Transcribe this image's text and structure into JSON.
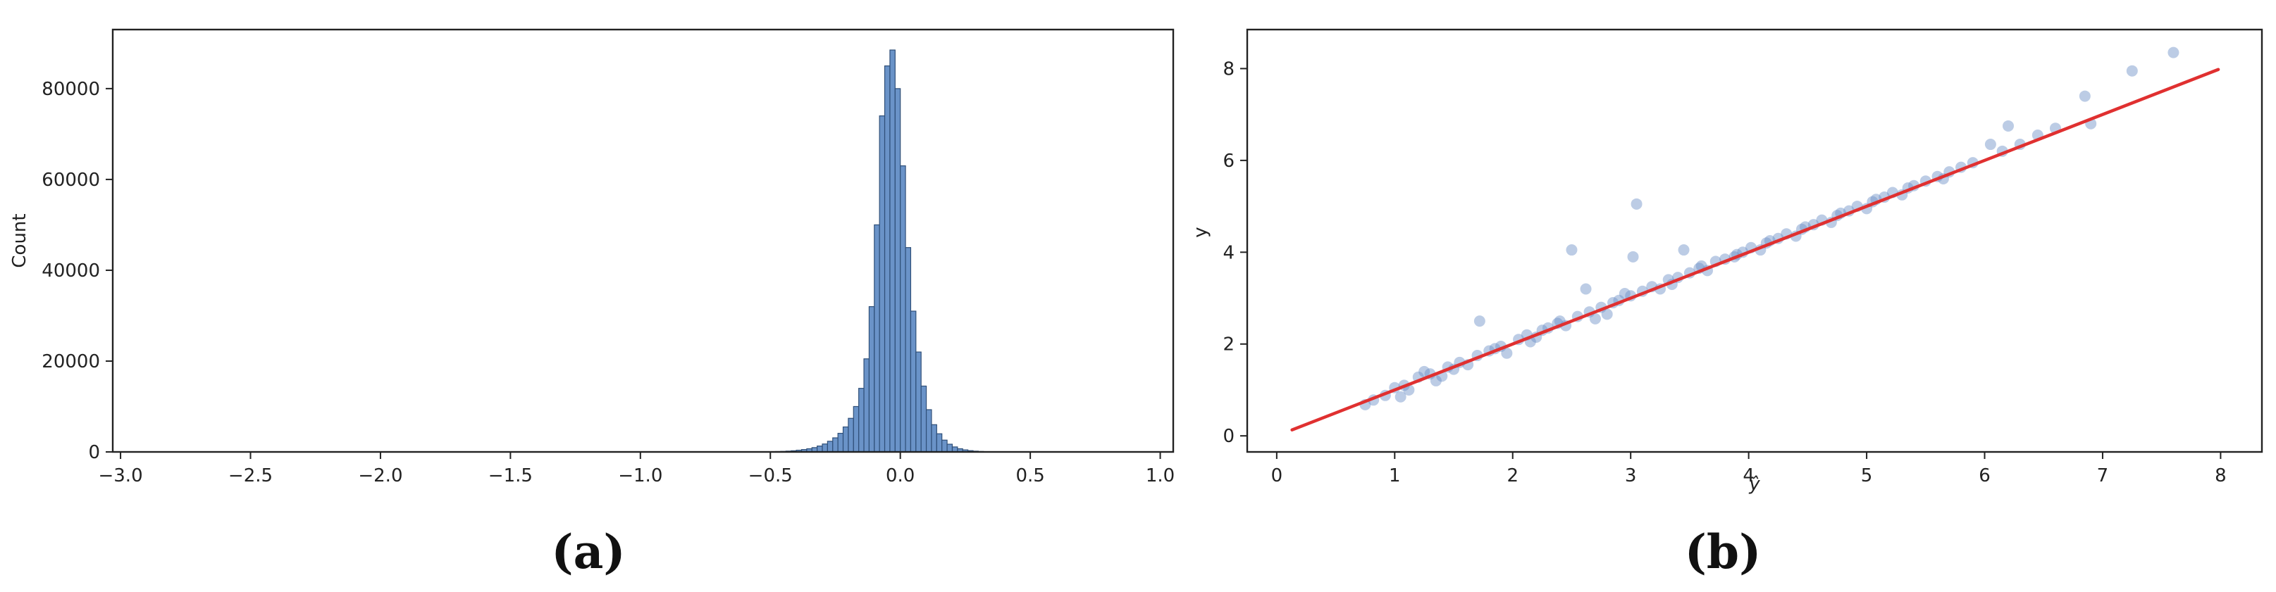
{
  "chart_data": [
    {
      "panel_label": "(a)",
      "type": "bar",
      "subtype": "histogram",
      "xlabel": "",
      "ylabel": "Count",
      "xlim": [
        -3.03,
        1.05
      ],
      "ylim": [
        0,
        93000
      ],
      "xticks": [
        -3.0,
        -2.5,
        -2.0,
        -1.5,
        -1.0,
        -0.5,
        0.0,
        0.5,
        1.0
      ],
      "xtick_labels": [
        "−3.0",
        "−2.5",
        "−2.0",
        "−1.5",
        "−1.0",
        "−0.5",
        "0.0",
        "0.5",
        "1.0"
      ],
      "yticks": [
        0,
        20000,
        40000,
        60000,
        80000
      ],
      "ytick_labels": [
        "0",
        "20000",
        "40000",
        "60000",
        "80000"
      ],
      "grid": false,
      "bar_color": "#6a93c8",
      "edge_color": "#2f4f78",
      "bin_start": -0.5,
      "bin_width": 0.02,
      "counts": [
        50,
        80,
        120,
        180,
        260,
        380,
        520,
        700,
        950,
        1300,
        1750,
        2350,
        3100,
        4100,
        5500,
        7400,
        10000,
        14000,
        20500,
        32000,
        50000,
        74000,
        85000,
        88500,
        80000,
        63000,
        45000,
        31000,
        22000,
        14500,
        9300,
        6000,
        4000,
        2600,
        1700,
        1100,
        700,
        450,
        280,
        170,
        100,
        60,
        35,
        20,
        10,
        5
      ]
    },
    {
      "panel_label": "(b)",
      "type": "scatter",
      "xlabel": "ŷ",
      "ylabel": "y",
      "xlim": [
        -0.25,
        8.35
      ],
      "ylim": [
        -0.35,
        8.85
      ],
      "xticks": [
        0,
        1,
        2,
        3,
        4,
        5,
        6,
        7,
        8
      ],
      "xtick_labels": [
        "0",
        "1",
        "2",
        "3",
        "4",
        "5",
        "6",
        "7",
        "8"
      ],
      "yticks": [
        0,
        2,
        4,
        6,
        8
      ],
      "ytick_labels": [
        "0",
        "2",
        "4",
        "6",
        "8"
      ],
      "grid": false,
      "point_color": "#6a8fc6",
      "fit_line": {
        "color": "#e03030",
        "x": [
          0.13,
          7.98
        ],
        "y": [
          0.13,
          7.98
        ]
      },
      "points": [
        [
          0.75,
          0.68
        ],
        [
          0.82,
          0.78
        ],
        [
          0.92,
          0.88
        ],
        [
          1.0,
          1.05
        ],
        [
          1.08,
          1.1
        ],
        [
          1.12,
          1.0
        ],
        [
          1.2,
          1.28
        ],
        [
          1.3,
          1.35
        ],
        [
          1.35,
          1.2
        ],
        [
          1.45,
          1.5
        ],
        [
          1.55,
          1.6
        ],
        [
          1.62,
          1.55
        ],
        [
          1.7,
          1.75
        ],
        [
          1.72,
          2.5
        ],
        [
          1.8,
          1.85
        ],
        [
          1.9,
          1.95
        ],
        [
          1.95,
          1.8
        ],
        [
          2.05,
          2.1
        ],
        [
          2.12,
          2.2
        ],
        [
          2.2,
          2.15
        ],
        [
          2.3,
          2.35
        ],
        [
          2.38,
          2.45
        ],
        [
          2.45,
          2.4
        ],
        [
          2.5,
          4.05
        ],
        [
          2.55,
          2.6
        ],
        [
          2.62,
          3.2
        ],
        [
          2.65,
          2.7
        ],
        [
          2.75,
          2.8
        ],
        [
          2.8,
          2.65
        ],
        [
          2.9,
          2.95
        ],
        [
          2.95,
          3.1
        ],
        [
          3.02,
          3.9
        ],
        [
          3.05,
          5.05
        ],
        [
          3.1,
          3.15
        ],
        [
          3.18,
          3.25
        ],
        [
          3.25,
          3.2
        ],
        [
          3.32,
          3.4
        ],
        [
          3.4,
          3.45
        ],
        [
          3.45,
          4.05
        ],
        [
          3.5,
          3.55
        ],
        [
          3.58,
          3.65
        ],
        [
          3.65,
          3.6
        ],
        [
          3.72,
          3.8
        ],
        [
          3.8,
          3.85
        ],
        [
          3.88,
          3.9
        ],
        [
          3.95,
          4.0
        ],
        [
          4.02,
          4.1
        ],
        [
          4.1,
          4.05
        ],
        [
          4.18,
          4.25
        ],
        [
          4.25,
          4.3
        ],
        [
          4.32,
          4.4
        ],
        [
          4.4,
          4.35
        ],
        [
          4.48,
          4.55
        ],
        [
          4.55,
          4.6
        ],
        [
          4.62,
          4.7
        ],
        [
          4.7,
          4.65
        ],
        [
          4.78,
          4.85
        ],
        [
          4.85,
          4.9
        ],
        [
          4.92,
          5.0
        ],
        [
          5.0,
          4.95
        ],
        [
          5.08,
          5.15
        ],
        [
          5.15,
          5.2
        ],
        [
          5.22,
          5.3
        ],
        [
          5.3,
          5.25
        ],
        [
          5.4,
          5.45
        ],
        [
          5.5,
          5.55
        ],
        [
          5.6,
          5.65
        ],
        [
          5.7,
          5.75
        ],
        [
          5.8,
          5.85
        ],
        [
          5.9,
          5.95
        ],
        [
          6.05,
          6.35
        ],
        [
          6.15,
          6.2
        ],
        [
          6.2,
          6.75
        ],
        [
          6.3,
          6.35
        ],
        [
          6.45,
          6.55
        ],
        [
          6.6,
          6.7
        ],
        [
          6.85,
          7.4
        ],
        [
          6.9,
          6.8
        ],
        [
          7.25,
          7.95
        ],
        [
          7.6,
          8.35
        ],
        [
          1.25,
          1.4
        ],
        [
          1.5,
          1.45
        ],
        [
          1.85,
          1.9
        ],
        [
          2.15,
          2.05
        ],
        [
          2.4,
          2.5
        ],
        [
          2.7,
          2.55
        ],
        [
          3.0,
          3.05
        ],
        [
          3.35,
          3.3
        ],
        [
          3.6,
          3.7
        ],
        [
          3.9,
          3.95
        ],
        [
          4.15,
          4.2
        ],
        [
          4.45,
          4.5
        ],
        [
          4.75,
          4.8
        ],
        [
          5.05,
          5.1
        ],
        [
          5.35,
          5.4
        ],
        [
          5.65,
          5.6
        ],
        [
          1.05,
          0.85
        ],
        [
          1.4,
          1.3
        ],
        [
          2.25,
          2.3
        ],
        [
          2.85,
          2.9
        ]
      ]
    }
  ],
  "panel_labels": [
    "(a)",
    "(b)"
  ]
}
